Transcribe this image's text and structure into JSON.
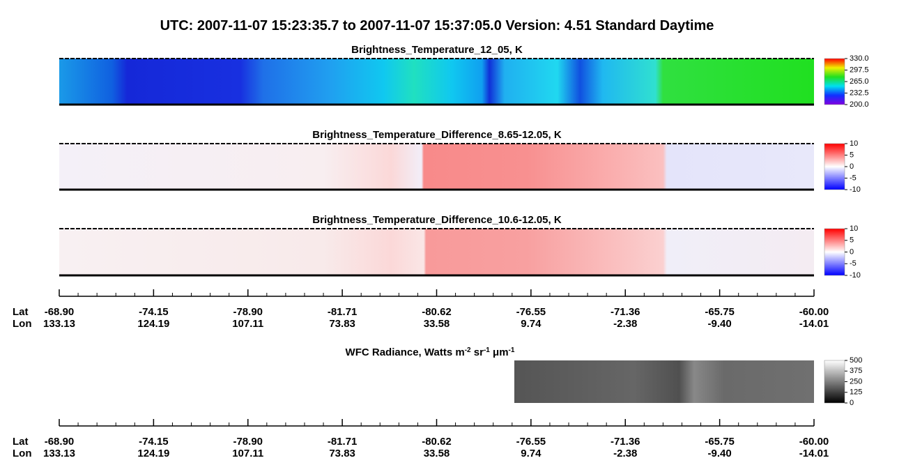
{
  "title": "UTC:  2007-11-07   15:23:35.7  to  2007-11-07   15:37:05.0    Version: 4.51  Standard Daytime",
  "panels": [
    {
      "title": "Brightness_Temperature_12_05, K",
      "colorbar": [
        "330.0",
        "297.5",
        "265.0",
        "232.5",
        "200.0"
      ]
    },
    {
      "title": "Brightness_Temperature_Difference_8.65-12.05, K",
      "colorbar": [
        "10",
        "5",
        "0",
        "-5",
        "-10"
      ]
    },
    {
      "title": "Brightness_Temperature_Difference_10.6-12.05, K",
      "colorbar": [
        "10",
        "5",
        "0",
        "-5",
        "-10"
      ]
    },
    {
      "title_parts": [
        "WFC Radiance, Watts m",
        "-2",
        " sr",
        "-1",
        " μm",
        "-1"
      ],
      "colorbar": [
        "500",
        "375",
        "250",
        "125",
        "0"
      ]
    }
  ],
  "axes": [
    {
      "row_labels": [
        "Lat",
        "Lon"
      ],
      "lat": [
        "-68.90",
        "-74.15",
        "-78.90",
        "-81.71",
        "-80.62",
        "-76.55",
        "-71.36",
        "-65.75",
        "-60.00"
      ],
      "lon": [
        "133.13",
        "124.19",
        "107.11",
        "73.83",
        "33.58",
        "9.74",
        "-2.38",
        "-9.40",
        "-14.01"
      ]
    },
    {
      "row_labels": [
        "Lat",
        "Lon"
      ],
      "lat": [
        "-68.90",
        "-74.15",
        "-78.90",
        "-81.71",
        "-80.62",
        "-76.55",
        "-71.36",
        "-65.75",
        "-60.00"
      ],
      "lon": [
        "133.13",
        "124.19",
        "107.11",
        "73.83",
        "33.58",
        "9.74",
        "-2.38",
        "-9.40",
        "-14.01"
      ]
    }
  ]
}
